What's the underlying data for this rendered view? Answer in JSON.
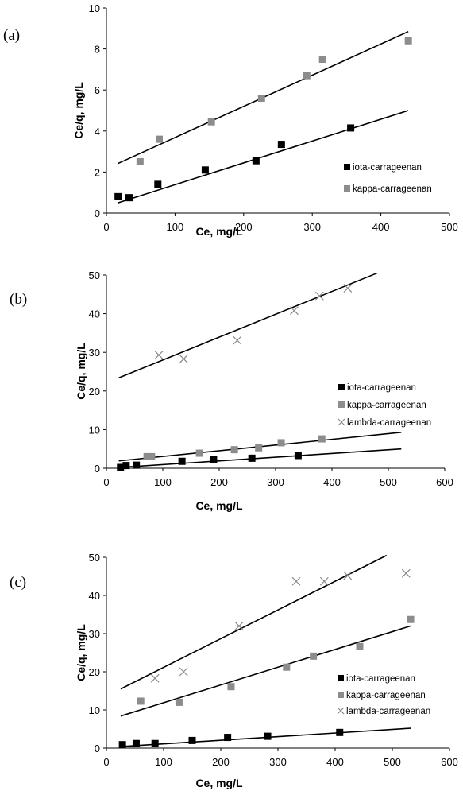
{
  "figure": {
    "colors": {
      "iota": "#000000",
      "kappa": "#8c8c8c",
      "lambda": "#888888",
      "fit": "#000000"
    }
  },
  "chart_data": [
    {
      "type": "scatter",
      "panel_label": "(a)",
      "xlabel": "Ce, mg/L",
      "ylabel": "Ce/q, mg/L",
      "xlim": [
        0,
        500
      ],
      "ylim": [
        0,
        10
      ],
      "xticks": [
        "0",
        "100",
        "200",
        "300",
        "400",
        "500"
      ],
      "yticks": [
        "0",
        "2",
        "4",
        "6",
        "8",
        "10"
      ],
      "legend_position": "right",
      "series": [
        {
          "name": "iota-carrageenan",
          "marker": "square",
          "color": "#000000",
          "x": [
            17,
            33,
            75,
            144,
            218,
            255,
            356
          ],
          "y": [
            0.8,
            0.75,
            1.4,
            2.1,
            2.55,
            3.35,
            4.15
          ],
          "fit": [
            [
              17,
              0.5
            ],
            [
              440,
              5.0
            ]
          ]
        },
        {
          "name": "kappa-carrageenan",
          "marker": "square",
          "color": "#8c8c8c",
          "x": [
            49,
            77,
            153,
            226,
            292,
            315,
            440
          ],
          "y": [
            2.5,
            3.6,
            4.45,
            5.6,
            6.7,
            7.5,
            8.4
          ],
          "fit": [
            [
              17,
              2.42
            ],
            [
              440,
              8.85
            ]
          ]
        }
      ]
    },
    {
      "type": "scatter",
      "panel_label": "(b)",
      "xlabel": "Ce, mg/L",
      "ylabel": "Ce/q, mg/L",
      "xlim": [
        0,
        600
      ],
      "ylim": [
        0,
        50
      ],
      "xticks": [
        "0",
        "100",
        "200",
        "300",
        "400",
        "500",
        "600"
      ],
      "yticks": [
        "0",
        "10",
        "20",
        "30",
        "40",
        "50"
      ],
      "legend_position": "right",
      "series": [
        {
          "name": "iota-carrageenan",
          "marker": "square",
          "color": "#000000",
          "x": [
            25,
            35,
            53,
            134,
            190,
            258,
            340
          ],
          "y": [
            0.2,
            0.7,
            0.8,
            1.8,
            2.2,
            2.6,
            3.3
          ],
          "fit": [
            [
              22,
              0.2
            ],
            [
              523,
              5.0
            ]
          ]
        },
        {
          "name": "kappa-carrageenan",
          "marker": "square",
          "color": "#8c8c8c",
          "x": [
            72,
            80,
            165,
            227,
            270,
            310,
            382
          ],
          "y": [
            3.0,
            3.0,
            3.9,
            4.8,
            5.3,
            6.6,
            7.6
          ],
          "fit": [
            [
              22,
              1.9
            ],
            [
              523,
              9.3
            ]
          ]
        },
        {
          "name": "lambda-carrageenan",
          "marker": "cross",
          "color": "#888888",
          "x": [
            93,
            137,
            232,
            333,
            378,
            428
          ],
          "y": [
            29.3,
            28.3,
            33.1,
            40.8,
            44.6,
            46.6
          ],
          "fit": [
            [
              22,
              23.4
            ],
            [
              480,
              50.5
            ]
          ]
        }
      ]
    },
    {
      "type": "scatter",
      "panel_label": "(c)",
      "xlabel": "Ce, mg/L",
      "ylabel": "Ce/q, mg/L",
      "xlim": [
        0,
        600
      ],
      "ylim": [
        0,
        50
      ],
      "xticks": [
        "0",
        "100",
        "200",
        "300",
        "400",
        "500",
        "600"
      ],
      "yticks": [
        "0",
        "10",
        "20",
        "30",
        "40",
        "50"
      ],
      "legend_position": "bottom-right",
      "series": [
        {
          "name": "iota-carrageenan",
          "marker": "square",
          "color": "#000000",
          "x": [
            28,
            52,
            85,
            150,
            212,
            282,
            408
          ],
          "y": [
            0.9,
            1.2,
            1.2,
            2.0,
            2.8,
            3.1,
            4.1
          ],
          "fit": [
            [
              25,
              0.4
            ],
            [
              532,
              5.2
            ]
          ]
        },
        {
          "name": "kappa-carrageenan",
          "marker": "square",
          "color": "#8c8c8c",
          "x": [
            60,
            127,
            218,
            315,
            362,
            443,
            532
          ],
          "y": [
            12.3,
            12.0,
            16.1,
            21.2,
            24.1,
            26.6,
            33.7
          ],
          "fit": [
            [
              25,
              8.4
            ],
            [
              532,
              32.0
            ]
          ]
        },
        {
          "name": "lambda-carrageenan",
          "marker": "cross",
          "color": "#888888",
          "x": [
            85,
            135,
            232,
            332,
            381,
            422,
            524
          ],
          "y": [
            18.3,
            20.0,
            32.0,
            43.7,
            43.7,
            45.2,
            45.8
          ],
          "fit": [
            [
              25,
              15.5
            ],
            [
              490,
              50.5
            ]
          ]
        }
      ]
    }
  ]
}
